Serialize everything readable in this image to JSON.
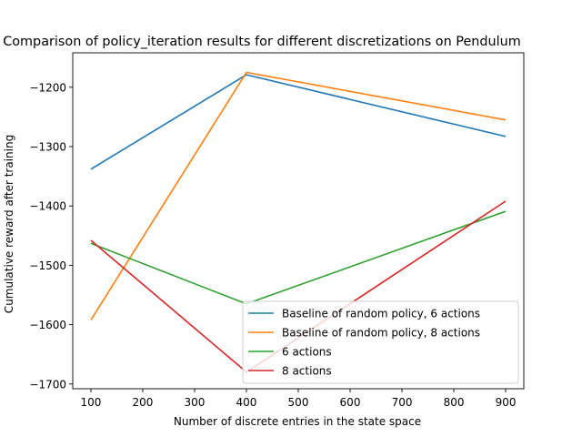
{
  "chart_data": {
    "type": "line",
    "title": "Comparison of policy_iteration results for different discretizations on Pendulum",
    "xlabel": "Number of discrete entries in the state space",
    "ylabel": "Cumulative reward after training",
    "x": [
      100,
      400,
      900
    ],
    "xlim": [
      65,
      935
    ],
    "ylim": [
      -1708,
      -1142
    ],
    "xticks": [
      100,
      200,
      300,
      400,
      500,
      600,
      700,
      800,
      900
    ],
    "yticks": [
      -1700,
      -1600,
      -1500,
      -1400,
      -1300,
      -1200
    ],
    "grid": false,
    "legend_position": "lower-right",
    "series": [
      {
        "name": "Baseline of random policy, 6 actions",
        "color": "#1f77b4",
        "values": [
          -1338,
          -1179,
          -1283
        ]
      },
      {
        "name": "Baseline of random policy, 8 actions",
        "color": "#ff7f0e",
        "values": [
          -1592,
          -1175,
          -1255
        ]
      },
      {
        "name": "6 actions",
        "color": "#2ca02c",
        "values": [
          -1463,
          -1565,
          -1409
        ]
      },
      {
        "name": "8 actions",
        "color": "#d62728",
        "values": [
          -1458,
          -1680,
          -1392
        ]
      }
    ]
  }
}
